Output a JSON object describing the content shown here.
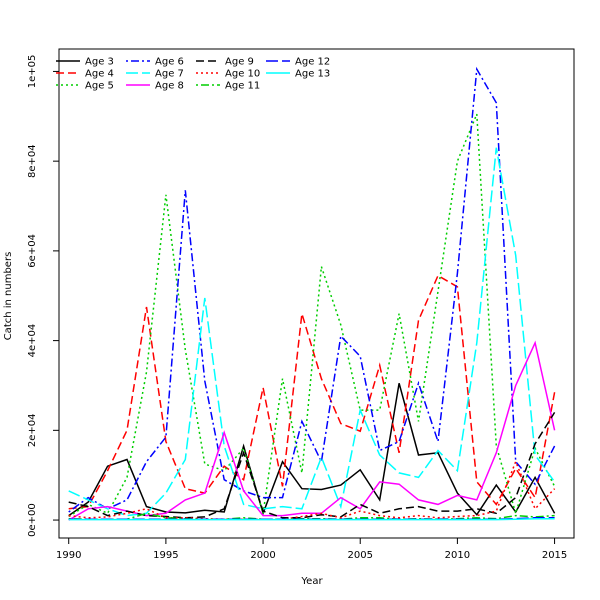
{
  "chart_data": {
    "type": "line",
    "title": "",
    "xlabel": "Year",
    "ylabel": "Catch in numbers",
    "xlim": [
      1989.5,
      2016
    ],
    "ylim": [
      -4000,
      105000
    ],
    "x_ticks": [
      1990,
      1995,
      2000,
      2005,
      2010,
      2015
    ],
    "x_tick_labels": [
      "1990",
      "1995",
      "2000",
      "2005",
      "2010",
      "2015"
    ],
    "y_ticks": [
      0,
      20000,
      40000,
      60000,
      80000,
      100000
    ],
    "y_tick_labels": [
      "0e+00",
      "2e+04",
      "4e+04",
      "6e+04",
      "8e+04",
      "1e+05"
    ],
    "grid": false,
    "legend_position": "top-left",
    "x": [
      1990,
      1991,
      1992,
      1993,
      1994,
      1995,
      1996,
      1997,
      1998,
      1999,
      2000,
      2001,
      2002,
      2003,
      2004,
      2005,
      2006,
      2007,
      2008,
      2009,
      2010,
      2011,
      2012,
      2013,
      2014,
      2015
    ],
    "series": [
      {
        "name": "Age 3",
        "color": "#000000",
        "dash": "solid",
        "values": [
          1000,
          4000,
          12000,
          13500,
          3000,
          1800,
          1600,
          2200,
          1800,
          16500,
          1500,
          13000,
          7000,
          6800,
          7800,
          11200,
          4500,
          30500,
          14500,
          15000,
          6000,
          1200,
          7800,
          1800,
          9500,
          1500
        ]
      },
      {
        "name": "Age 4",
        "color": "#ff0000",
        "dash": "dashed",
        "values": [
          2500,
          3000,
          11000,
          20000,
          47500,
          17500,
          7000,
          6000,
          12000,
          9000,
          29500,
          7500,
          46000,
          31500,
          21500,
          19800,
          34500,
          15000,
          44500,
          54500,
          52000,
          8500,
          3500,
          11500,
          5000,
          28500
        ]
      },
      {
        "name": "Age 5",
        "color": "#00cd00",
        "dash": "dotted",
        "values": [
          800,
          3500,
          1500,
          9500,
          33000,
          72500,
          38000,
          12500,
          11000,
          16000,
          1500,
          31500,
          10500,
          56500,
          43500,
          24500,
          24500,
          46000,
          22000,
          51000,
          80000,
          90500,
          16500,
          1500,
          16000,
          7500
        ]
      },
      {
        "name": "Age 6",
        "color": "#0000ff",
        "dash": "dashdot",
        "values": [
          1800,
          5000,
          2500,
          4500,
          13000,
          18500,
          73500,
          31000,
          9000,
          6500,
          5000,
          5000,
          22000,
          13000,
          41000,
          36500,
          15500,
          17500,
          30500,
          17500,
          55000,
          100500,
          93000,
          13000,
          8000,
          16500
        ]
      },
      {
        "name": "Age 7",
        "color": "#00ffff",
        "dash": "longdash",
        "values": [
          6500,
          4500,
          2500,
          1000,
          1500,
          6000,
          13500,
          49500,
          16500,
          3500,
          2500,
          3000,
          2500,
          14000,
          3000,
          24500,
          14500,
          10500,
          9500,
          15500,
          11000,
          39500,
          83000,
          59000,
          14500,
          8500
        ]
      },
      {
        "name": "Age 8",
        "color": "#ff00ff",
        "dash": "solid",
        "values": [
          0,
          2500,
          3000,
          2000,
          1000,
          1500,
          4500,
          6000,
          19500,
          6500,
          1000,
          1000,
          1500,
          1500,
          5000,
          2500,
          8500,
          8000,
          4500,
          3500,
          5500,
          4500,
          15000,
          30000,
          39500,
          20000
        ]
      },
      {
        "name": "Age 9",
        "color": "#000000",
        "dash": "dashed",
        "values": [
          4000,
          3000,
          1000,
          2000,
          1000,
          800,
          500,
          700,
          2500,
          15000,
          2000,
          500,
          500,
          1200,
          700,
          3500,
          1500,
          2500,
          3000,
          2000,
          2000,
          2500,
          1500,
          5000,
          17000,
          24000
        ]
      },
      {
        "name": "Age 10",
        "color": "#ff0000",
        "dash": "dotted",
        "values": [
          1000,
          500,
          700,
          1500,
          2500,
          500,
          500,
          300,
          200,
          200,
          200,
          200,
          800,
          1500,
          500,
          2000,
          1000,
          500,
          1000,
          500,
          800,
          1000,
          2000,
          13000,
          2500,
          7000
        ]
      },
      {
        "name": "Age 11",
        "color": "#00cd00",
        "dash": "dashdot",
        "values": [
          300,
          200,
          200,
          200,
          1500,
          500,
          300,
          200,
          200,
          500,
          200,
          200,
          300,
          300,
          200,
          500,
          500,
          200,
          300,
          200,
          300,
          500,
          300,
          1000,
          700,
          1000
        ]
      },
      {
        "name": "Age 12",
        "color": "#0000ff",
        "dash": "longdash",
        "values": [
          200,
          200,
          200,
          200,
          200,
          200,
          200,
          200,
          200,
          200,
          200,
          200,
          200,
          200,
          200,
          200,
          200,
          200,
          200,
          200,
          200,
          200,
          200,
          300,
          500,
          500
        ]
      },
      {
        "name": "Age 13",
        "color": "#00ffff",
        "dash": "solid",
        "values": [
          100,
          100,
          100,
          100,
          100,
          100,
          100,
          100,
          100,
          100,
          100,
          100,
          100,
          100,
          100,
          100,
          100,
          100,
          100,
          100,
          100,
          100,
          100,
          200,
          300,
          300
        ]
      }
    ]
  }
}
